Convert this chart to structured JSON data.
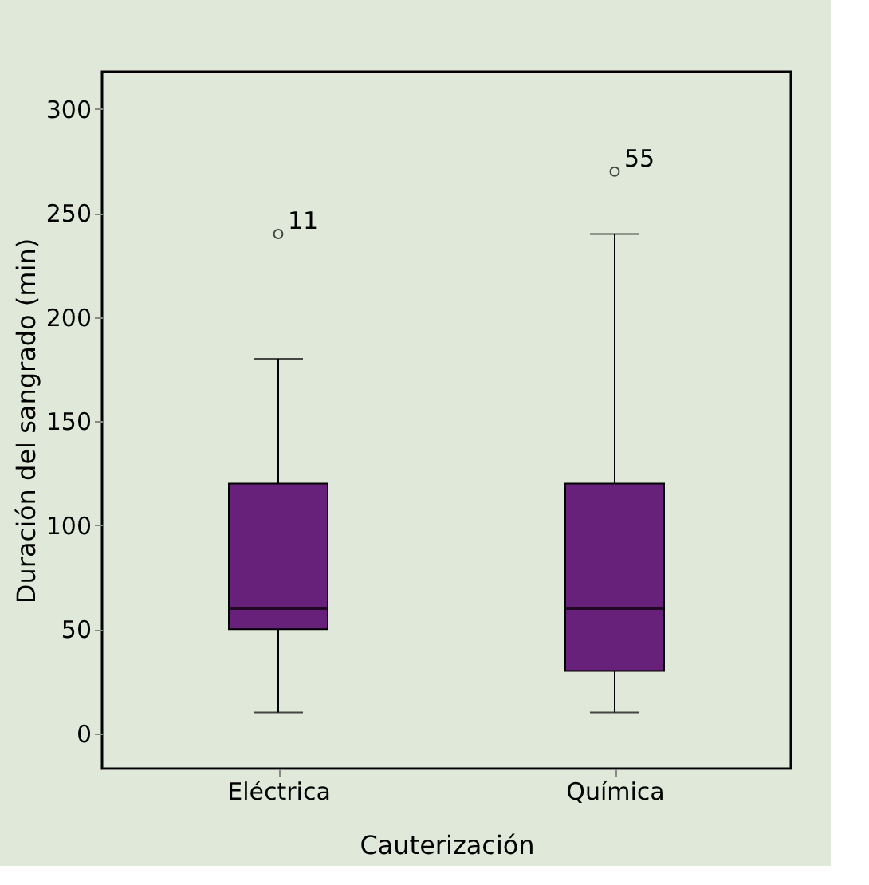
{
  "chart_data": {
    "type": "box",
    "categories": [
      "Eléctrica",
      "Química"
    ],
    "boxes": [
      {
        "low": 10,
        "q1": 50,
        "median": 60,
        "q3": 120,
        "high": 180,
        "outliers": [
          240
        ]
      },
      {
        "low": 10,
        "q1": 30,
        "median": 60,
        "q3": 120,
        "high": 240,
        "outliers": [
          270
        ]
      }
    ],
    "color": "#68217a",
    "xlabel": "Cauterización",
    "ylabel": "Duración del sangrado (min)",
    "ylim": [
      -17,
      318
    ],
    "yticks": [
      0,
      50,
      100,
      150,
      200,
      250,
      300
    ],
    "grid": false,
    "annotations": [
      "11",
      "55"
    ]
  }
}
